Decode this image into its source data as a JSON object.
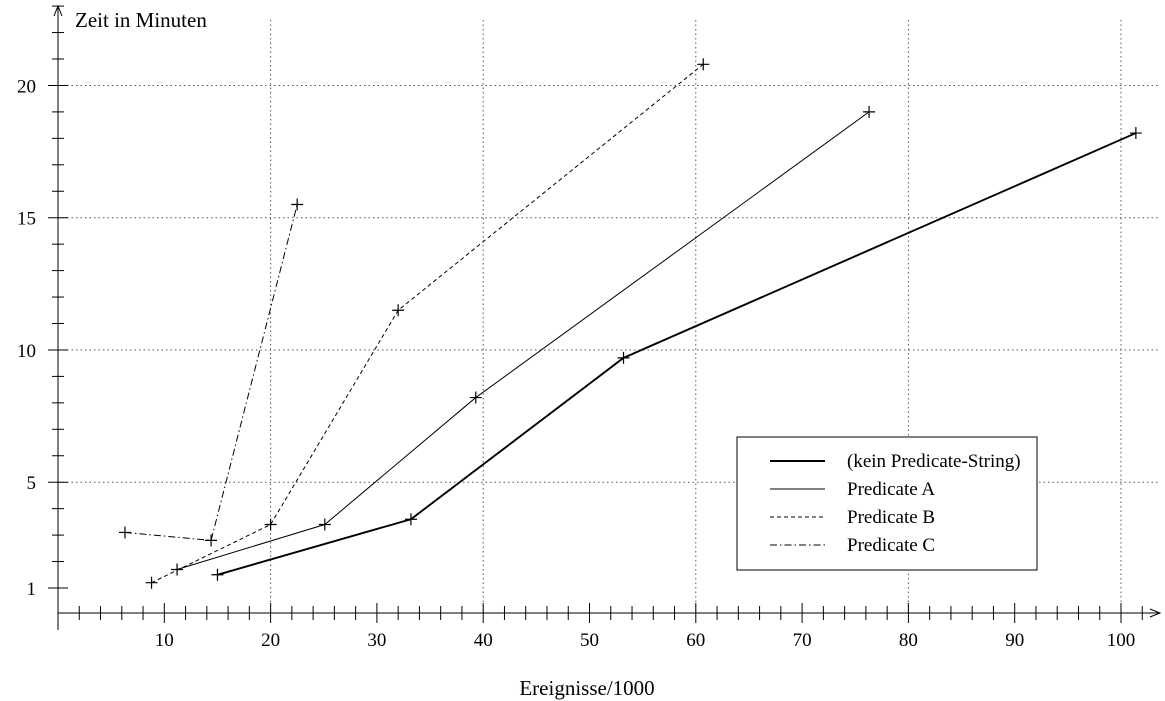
{
  "chart_data": {
    "type": "line",
    "title": "",
    "xlabel": "Ereignisse/1000",
    "ylabel": "Zeit in Minuten",
    "xlim": [
      0,
      103
    ],
    "ylim": [
      0,
      24
    ],
    "x_ticks": [
      10,
      20,
      30,
      40,
      50,
      60,
      70,
      80,
      90,
      100
    ],
    "y_ticks": [
      1,
      5,
      10,
      15,
      20
    ],
    "grid": "dotted, x every 20, y at 5 10 15 20",
    "legend_position": "lower-right",
    "series": [
      {
        "name": "(kein Predicate-String)",
        "style": "solid-thick",
        "x": [
          15,
          33.2,
          53.2,
          101.4
        ],
        "y": [
          1.5,
          3.6,
          9.7,
          18.2
        ]
      },
      {
        "name": "Predicate A",
        "style": "solid",
        "x": [
          11.2,
          25.1,
          39.3,
          76.3
        ],
        "y": [
          1.7,
          3.4,
          8.2,
          19.0
        ]
      },
      {
        "name": "Predicate B",
        "style": "dashed",
        "x": [
          8.8,
          20,
          32,
          60.7
        ],
        "y": [
          1.2,
          3.4,
          11.5,
          20.8
        ]
      },
      {
        "name": "Predicate C",
        "style": "dash-dot",
        "x": [
          6.3,
          14.4,
          22.5
        ],
        "y": [
          3.1,
          2.8,
          15.5
        ]
      }
    ]
  }
}
